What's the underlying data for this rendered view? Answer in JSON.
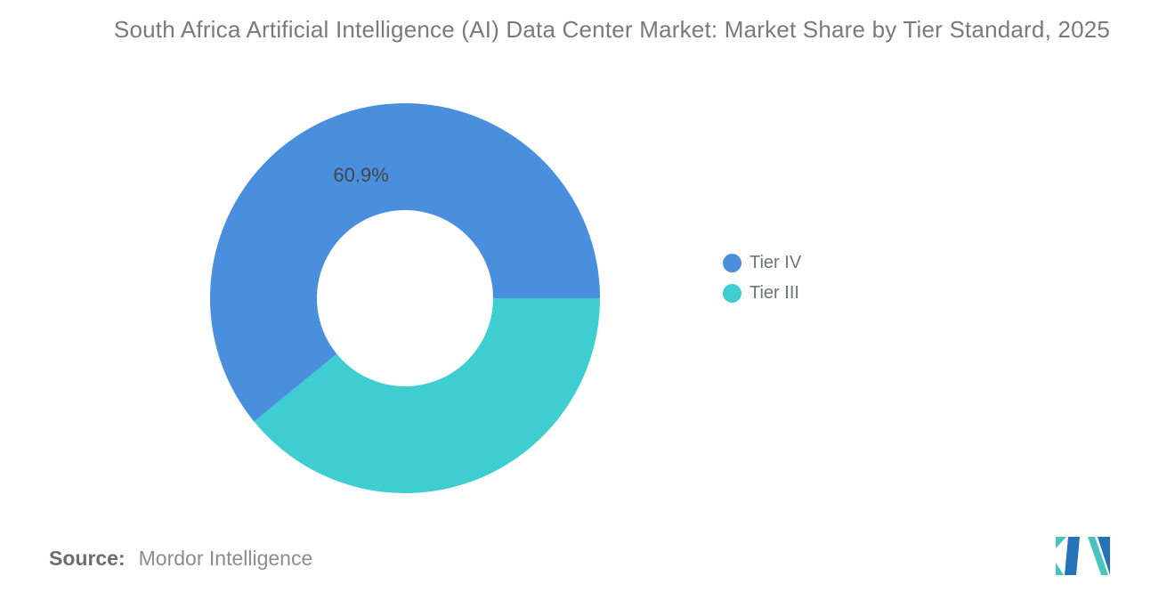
{
  "title": "South Africa Artificial Intelligence (AI) Data Center Market: Market Share by Tier Standard, 2025",
  "chart_data": {
    "type": "pie",
    "subtype": "donut",
    "title": "South Africa Artificial Intelligence (AI) Data Center Market: Market Share by Tier Standard, 2025",
    "categories": [
      "Tier IV",
      "Tier III"
    ],
    "values": [
      60.9,
      39.1
    ],
    "unit": "%",
    "colors": [
      "#4A8EDE",
      "#3ECDD0"
    ],
    "data_labels": [
      "60.9%",
      ""
    ],
    "start_angle_deg": 0,
    "direction": "counterclockwise",
    "inner_radius_ratio": 0.45,
    "legend_position": "right",
    "background": "#FFFFFF"
  },
  "source": {
    "label": "Source:",
    "value": "Mordor Intelligence"
  },
  "logo": {
    "icon": "mordor-intelligence-logo",
    "teal": "#48C4BE",
    "blue": "#2372BA"
  },
  "text_colors": {
    "title": "#7A7A7A",
    "data_label": "#42464B",
    "legend": "#6F7276",
    "source_label": "#6D6D6D",
    "source_value": "#8C8C8C"
  }
}
